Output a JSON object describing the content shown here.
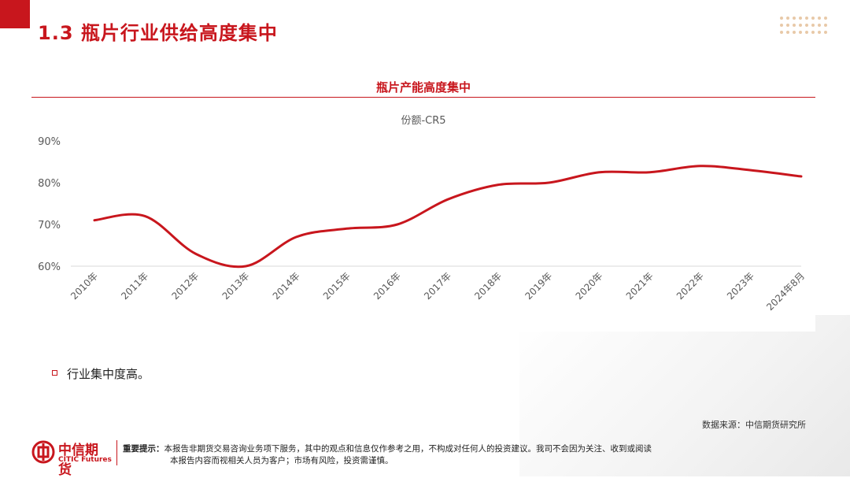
{
  "slide": {
    "title": "1.3  瓶片行业供给高度集中"
  },
  "colors": {
    "brand": "#c8161d",
    "line": "#c8161d",
    "grid": "#d9d9d9",
    "axis_text": "#595959"
  },
  "chart_data": {
    "type": "line",
    "title": "瓶片产能高度集中",
    "subtitle": "份额-CR5",
    "categories": [
      "2010年",
      "2011年",
      "2012年",
      "2013年",
      "2014年",
      "2015年",
      "2016年",
      "2017年",
      "2018年",
      "2019年",
      "2020年",
      "2021年",
      "2022年",
      "2023年",
      "2024年8月"
    ],
    "series": [
      {
        "values": [
          71,
          72,
          63,
          60,
          67,
          69,
          70,
          76,
          79.5,
          80,
          82.5,
          82.5,
          84,
          83,
          81.5
        ]
      }
    ],
    "yticks": [
      "60%",
      "70%",
      "80%",
      "90%"
    ],
    "ylim": [
      60,
      90
    ],
    "grid": false,
    "legend": "none"
  },
  "bullets": [
    "行业集中度高。"
  ],
  "source": "数据来源：中信期货研究所",
  "footer": {
    "logo_cn": "中信期货",
    "logo_en": "CITIC Futures",
    "disclaimer_label": "重要提示：",
    "disclaimer_line1": "本报告非期货交易咨询业务项下服务，其中的观点和信息仅作参考之用，不构成对任何人的投资建议。我司不会因为关注、收到或阅读",
    "disclaimer_line2": "本报告内容而视相关人员为客户；市场有风险，投资需谨慎。"
  }
}
